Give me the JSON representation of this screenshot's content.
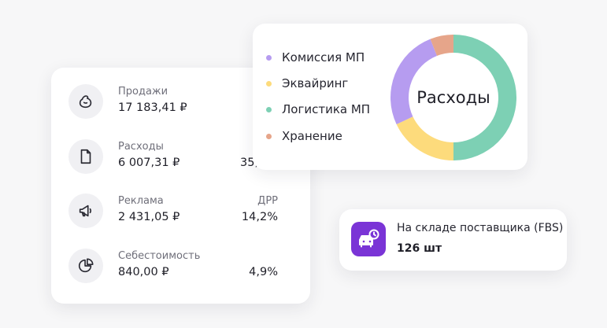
{
  "metrics": [
    {
      "label": "Продажи",
      "value": "17 183,41 ₽",
      "side_label": "",
      "side_value": "",
      "icon": "wallet-icon"
    },
    {
      "label": "Расходы",
      "value": "6 007,31 ₽",
      "side_label": "",
      "side_value": "35,",
      "icon": "document-icon"
    },
    {
      "label": "Реклама",
      "value": "2 431,05 ₽",
      "side_label": "ДРР",
      "side_value": "14,2%",
      "icon": "megaphone-icon"
    },
    {
      "label": "Себестоимость",
      "value": "840,00 ₽",
      "side_label": "",
      "side_value": "4,9%",
      "icon": "pie-chart-icon"
    }
  ],
  "expenses": {
    "title": "Расходы",
    "legend": [
      {
        "label": "Комиссия МП",
        "color": "#b69cf0"
      },
      {
        "label": "Эквайринг",
        "color": "#fddb7c"
      },
      {
        "label": "Логистика МП",
        "color": "#7dd0b4"
      },
      {
        "label": "Хранение",
        "color": "#e6a58a"
      }
    ],
    "segments": [
      {
        "fraction": 0.5,
        "color": "#7dd0b4"
      },
      {
        "fraction": 0.18,
        "color": "#fddb7c"
      },
      {
        "fraction": 0.26,
        "color": "#b69cf0"
      },
      {
        "fraction": 0.06,
        "color": "#e6a58a"
      }
    ]
  },
  "fbs": {
    "title": "На складе поставщика (FBS)",
    "count": "126 шт",
    "icon": "car-clock-icon",
    "icon_bg": "#7a34d6"
  }
}
